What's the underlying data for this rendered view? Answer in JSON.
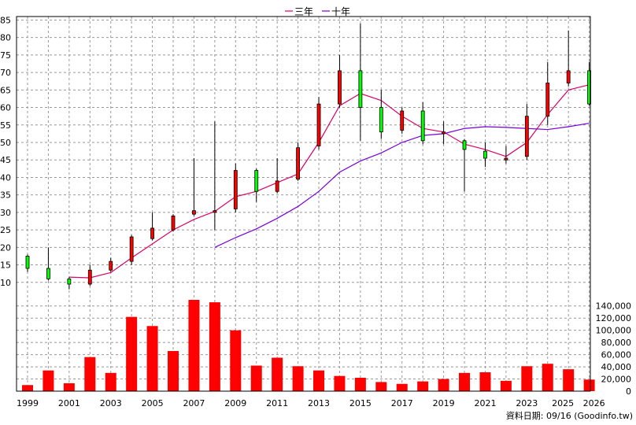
{
  "legend": {
    "ma3_label": "三年",
    "ma10_label": "十年"
  },
  "footer": "資料日期: 09/16  (Goodinfo.tw)",
  "colors": {
    "up": "#00ff00",
    "down": "#ff0000",
    "volume": "#ff0000",
    "ma3": "#dd0066",
    "ma10": "#7700dd",
    "grid": "#999999"
  },
  "chart_data": {
    "type": "candlestick",
    "price_axis": {
      "ylim": [
        5,
        86
      ],
      "ticks": [
        10,
        15,
        20,
        25,
        30,
        35,
        40,
        45,
        50,
        55,
        60,
        65,
        70,
        75,
        80,
        85
      ]
    },
    "volume_axis": {
      "ylim": [
        0,
        150000
      ],
      "ticks": [
        0,
        20000,
        40000,
        60000,
        80000,
        100000,
        120000,
        140000
      ],
      "tick_labels": [
        "0",
        "20,000",
        "40,000",
        "60,000",
        "80,000",
        "100,000",
        "120,000",
        "140,000"
      ]
    },
    "x_tick_labels": [
      "1999",
      "2001",
      "2003",
      "2005",
      "2007",
      "2009",
      "2011",
      "2013",
      "2015",
      "2017",
      "2019",
      "2021",
      "2023",
      "2025",
      "2026"
    ],
    "years": [
      1999,
      2000,
      2001,
      2002,
      2003,
      2004,
      2005,
      2006,
      2007,
      2008,
      2009,
      2010,
      2011,
      2012,
      2013,
      2014,
      2015,
      2016,
      2017,
      2018,
      2019,
      2020,
      2021,
      2022,
      2023,
      2024,
      2025,
      2026
    ],
    "candles": [
      {
        "year": 1999,
        "open": 14,
        "high": 18,
        "low": 13,
        "close": 17.5
      },
      {
        "year": 2000,
        "open": 11,
        "high": 20,
        "low": 10.5,
        "close": 14
      },
      {
        "year": 2001,
        "open": 9.5,
        "high": 11.5,
        "low": 8,
        "close": 11
      },
      {
        "year": 2002,
        "open": 13.5,
        "high": 15,
        "low": 9,
        "close": 9.5
      },
      {
        "year": 2003,
        "open": 16,
        "high": 17,
        "low": 13,
        "close": 13.5
      },
      {
        "year": 2004,
        "open": 23,
        "high": 23.5,
        "low": 15,
        "close": 16
      },
      {
        "year": 2005,
        "open": 25.5,
        "high": 30,
        "low": 22,
        "close": 22.5
      },
      {
        "year": 2006,
        "open": 29,
        "high": 29.5,
        "low": 24.5,
        "close": 25
      },
      {
        "year": 2007,
        "open": 30.5,
        "high": 45.5,
        "low": 29,
        "close": 29.5
      },
      {
        "year": 2008,
        "open": 30.5,
        "high": 56,
        "low": 25,
        "close": 30
      },
      {
        "year": 2009,
        "open": 42,
        "high": 44,
        "low": 30,
        "close": 31
      },
      {
        "year": 2010,
        "open": 36,
        "high": 42.5,
        "low": 33,
        "close": 42
      },
      {
        "year": 2011,
        "open": 39,
        "high": 45.5,
        "low": 35.5,
        "close": 36
      },
      {
        "year": 2012,
        "open": 48.5,
        "high": 50,
        "low": 39,
        "close": 39.5
      },
      {
        "year": 2013,
        "open": 61,
        "high": 63,
        "low": 48,
        "close": 49
      },
      {
        "year": 2014,
        "open": 70.5,
        "high": 75,
        "low": 60,
        "close": 61
      },
      {
        "year": 2015,
        "open": 60,
        "high": 84,
        "low": 50.5,
        "close": 70.5
      },
      {
        "year": 2016,
        "open": 53,
        "high": 65,
        "low": 51,
        "close": 60
      },
      {
        "year": 2017,
        "open": 59,
        "high": 60,
        "low": 52.5,
        "close": 53.5
      },
      {
        "year": 2018,
        "open": 50.5,
        "high": 61.5,
        "low": 49.5,
        "close": 59
      },
      {
        "year": 2019,
        "open": 53,
        "high": 56,
        "low": 49.5,
        "close": 52.5
      },
      {
        "year": 2020,
        "open": 48,
        "high": 51,
        "low": 36,
        "close": 50.5
      },
      {
        "year": 2021,
        "open": 45.5,
        "high": 50,
        "low": 43,
        "close": 47.5
      },
      {
        "year": 2022,
        "open": 45.5,
        "high": 49,
        "low": 44,
        "close": 45
      },
      {
        "year": 2023,
        "open": 57.5,
        "high": 61,
        "low": 45,
        "close": 46
      },
      {
        "year": 2024,
        "open": 67,
        "high": 73,
        "low": 55,
        "close": 57.5
      },
      {
        "year": 2025,
        "open": 70.5,
        "high": 82,
        "low": 66,
        "close": 67
      },
      {
        "year": 2026,
        "open": 61,
        "high": 73,
        "low": 60.5,
        "close": 70.5
      }
    ],
    "volume": [
      10000,
      34000,
      13000,
      56000,
      30000,
      122000,
      107000,
      66000,
      150000,
      146000,
      100000,
      42000,
      55000,
      41000,
      34000,
      25000,
      22000,
      15000,
      12000,
      16000,
      20000,
      30000,
      31000,
      17000,
      41000,
      45000,
      36000,
      19000
    ],
    "series": [
      {
        "name": "三年",
        "x": [
          2001,
          2002,
          2003,
          2004,
          2005,
          2006,
          2007,
          2008,
          2009,
          2010,
          2011,
          2012,
          2013,
          2014,
          2015,
          2016,
          2017,
          2018,
          2019,
          2020,
          2021,
          2022,
          2023,
          2024,
          2025,
          2026
        ],
        "values": [
          11.5,
          11.3,
          12.8,
          17,
          21,
          25,
          28,
          30.3,
          34.5,
          36,
          38.5,
          41,
          50,
          60.5,
          64,
          62,
          57.5,
          54,
          53,
          49.5,
          48,
          46,
          50,
          58,
          65,
          66.5
        ]
      },
      {
        "name": "十年",
        "x": [
          2008,
          2009,
          2010,
          2011,
          2012,
          2013,
          2014,
          2015,
          2016,
          2017,
          2018,
          2019,
          2020,
          2021,
          2022,
          2023,
          2024,
          2025,
          2026
        ],
        "values": [
          20,
          22.8,
          25.3,
          28.3,
          31.7,
          36,
          41.5,
          44.7,
          47,
          50,
          52,
          52.5,
          54,
          54.5,
          54.3,
          54,
          53.7,
          54.5,
          55.5
        ]
      }
    ]
  }
}
